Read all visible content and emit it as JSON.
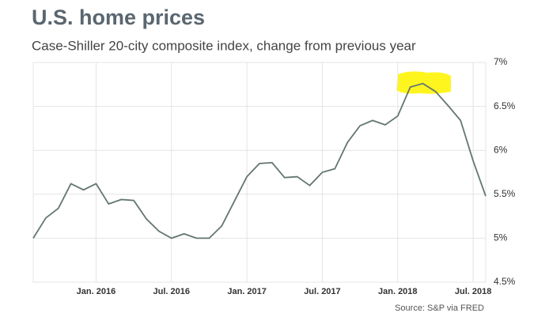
{
  "chart_data": {
    "type": "line",
    "title": "U.S. home prices",
    "subtitle": "Case-Shiller 20-city composite index, change from previous year",
    "source": "Source: S&P via FRED",
    "x": [
      "2015-08",
      "2015-09",
      "2015-10",
      "2015-11",
      "2015-12",
      "2016-01",
      "2016-02",
      "2016-03",
      "2016-04",
      "2016-05",
      "2016-06",
      "2016-07",
      "2016-08",
      "2016-09",
      "2016-10",
      "2016-11",
      "2016-12",
      "2017-01",
      "2017-02",
      "2017-03",
      "2017-04",
      "2017-05",
      "2017-06",
      "2017-07",
      "2017-08",
      "2017-09",
      "2017-10",
      "2017-11",
      "2017-12",
      "2018-01",
      "2018-02",
      "2018-03",
      "2018-04",
      "2018-05",
      "2018-06",
      "2018-07",
      "2018-08"
    ],
    "series": [
      {
        "name": "Case-Shiller 20-city composite",
        "color": "#62776f",
        "values": [
          5.0,
          5.23,
          5.34,
          5.62,
          5.55,
          5.62,
          5.39,
          5.44,
          5.43,
          5.22,
          5.08,
          5.0,
          5.05,
          5.0,
          5.0,
          5.14,
          5.42,
          5.7,
          5.85,
          5.86,
          5.69,
          5.7,
          5.6,
          5.75,
          5.79,
          6.09,
          6.28,
          6.34,
          6.29,
          6.39,
          6.72,
          6.76,
          6.67,
          6.51,
          6.34,
          5.88,
          5.48
        ]
      }
    ],
    "xlim": [
      "2015-08",
      "2018-08"
    ],
    "xticks": [
      {
        "value": "2016-01",
        "label": "Jan. 2016"
      },
      {
        "value": "2016-07",
        "label": "Jul. 2016"
      },
      {
        "value": "2017-01",
        "label": "Jan. 2017"
      },
      {
        "value": "2017-07",
        "label": "Jul. 2017"
      },
      {
        "value": "2018-01",
        "label": "Jan. 2018"
      },
      {
        "value": "2018-07",
        "label": "Jul. 2018"
      }
    ],
    "ylim": [
      4.5,
      7
    ],
    "yticks": [
      {
        "value": 4.5,
        "label": "4.5%"
      },
      {
        "value": 5,
        "label": "5%"
      },
      {
        "value": 5.5,
        "label": "5.5%"
      },
      {
        "value": 6,
        "label": "6%"
      },
      {
        "value": 6.5,
        "label": "6.5%"
      },
      {
        "value": 7,
        "label": "7%"
      }
    ],
    "grid": true
  }
}
